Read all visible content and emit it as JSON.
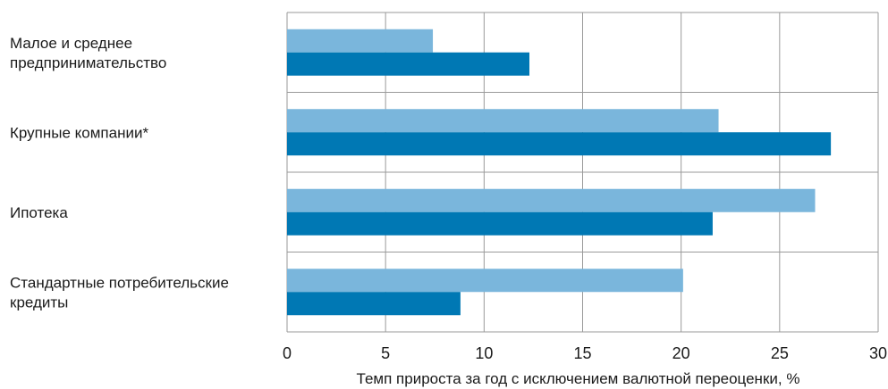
{
  "chart_data": {
    "type": "bar",
    "orientation": "horizontal",
    "categories": [
      [
        "Малое и среднее",
        "предпринимательство"
      ],
      [
        "Крупные компании*"
      ],
      [
        "Ипотека"
      ],
      [
        "Стандартные потребительские",
        "кредиты"
      ]
    ],
    "series": [
      {
        "color": "#7ab6dc",
        "values": [
          7.4,
          21.9,
          26.8,
          20.1
        ]
      },
      {
        "color": "#0078b4",
        "values": [
          12.3,
          27.6,
          21.6,
          8.8
        ]
      }
    ],
    "xlim": [
      0,
      30
    ],
    "xticks": [
      0,
      5,
      10,
      15,
      20,
      25,
      30
    ],
    "xlabel": "Темп прироста за год с исключением валютной переоценки, %",
    "grid": true
  }
}
